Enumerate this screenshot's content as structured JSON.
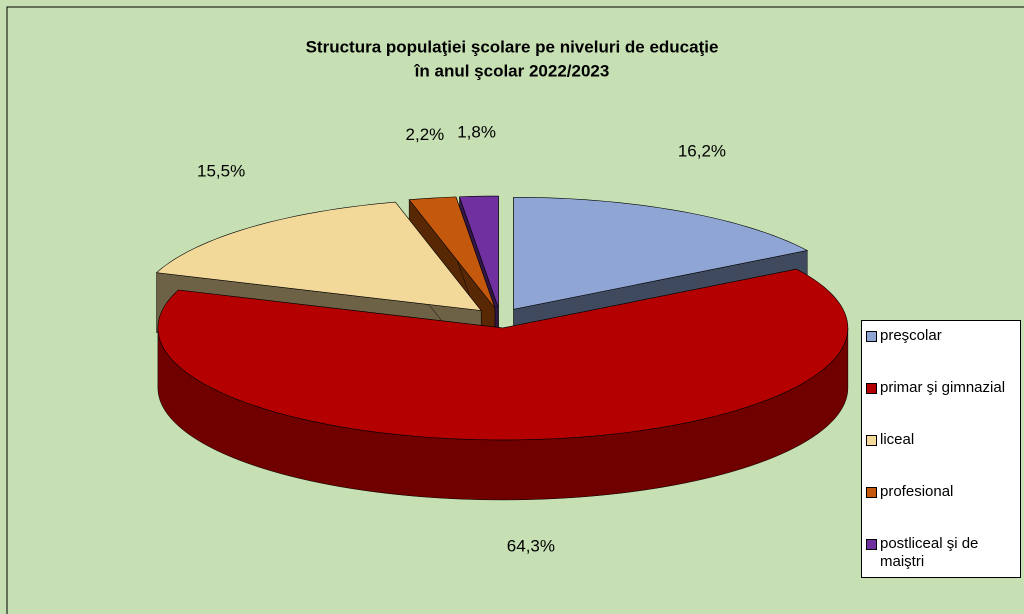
{
  "chart_data": {
    "type": "pie3d",
    "title": [
      "Structura populaţiei şcolare pe niveluri de educaţie",
      "în anul şcolar 2022/2023"
    ],
    "categories": [
      "preşcolar",
      "primar şi gimnazial",
      "liceal",
      "profesional",
      "postliceal şi de maiştri"
    ],
    "values": [
      16.2,
      64.3,
      15.5,
      2.2,
      1.8
    ],
    "value_labels": [
      "16,2%",
      "64,3%",
      "15,5%",
      "2,2%",
      "1,8%"
    ],
    "colors": [
      "#8fa5d3",
      "#b40000",
      "#f3d999",
      "#c4580c",
      "#7030a0"
    ],
    "legend": "right"
  }
}
